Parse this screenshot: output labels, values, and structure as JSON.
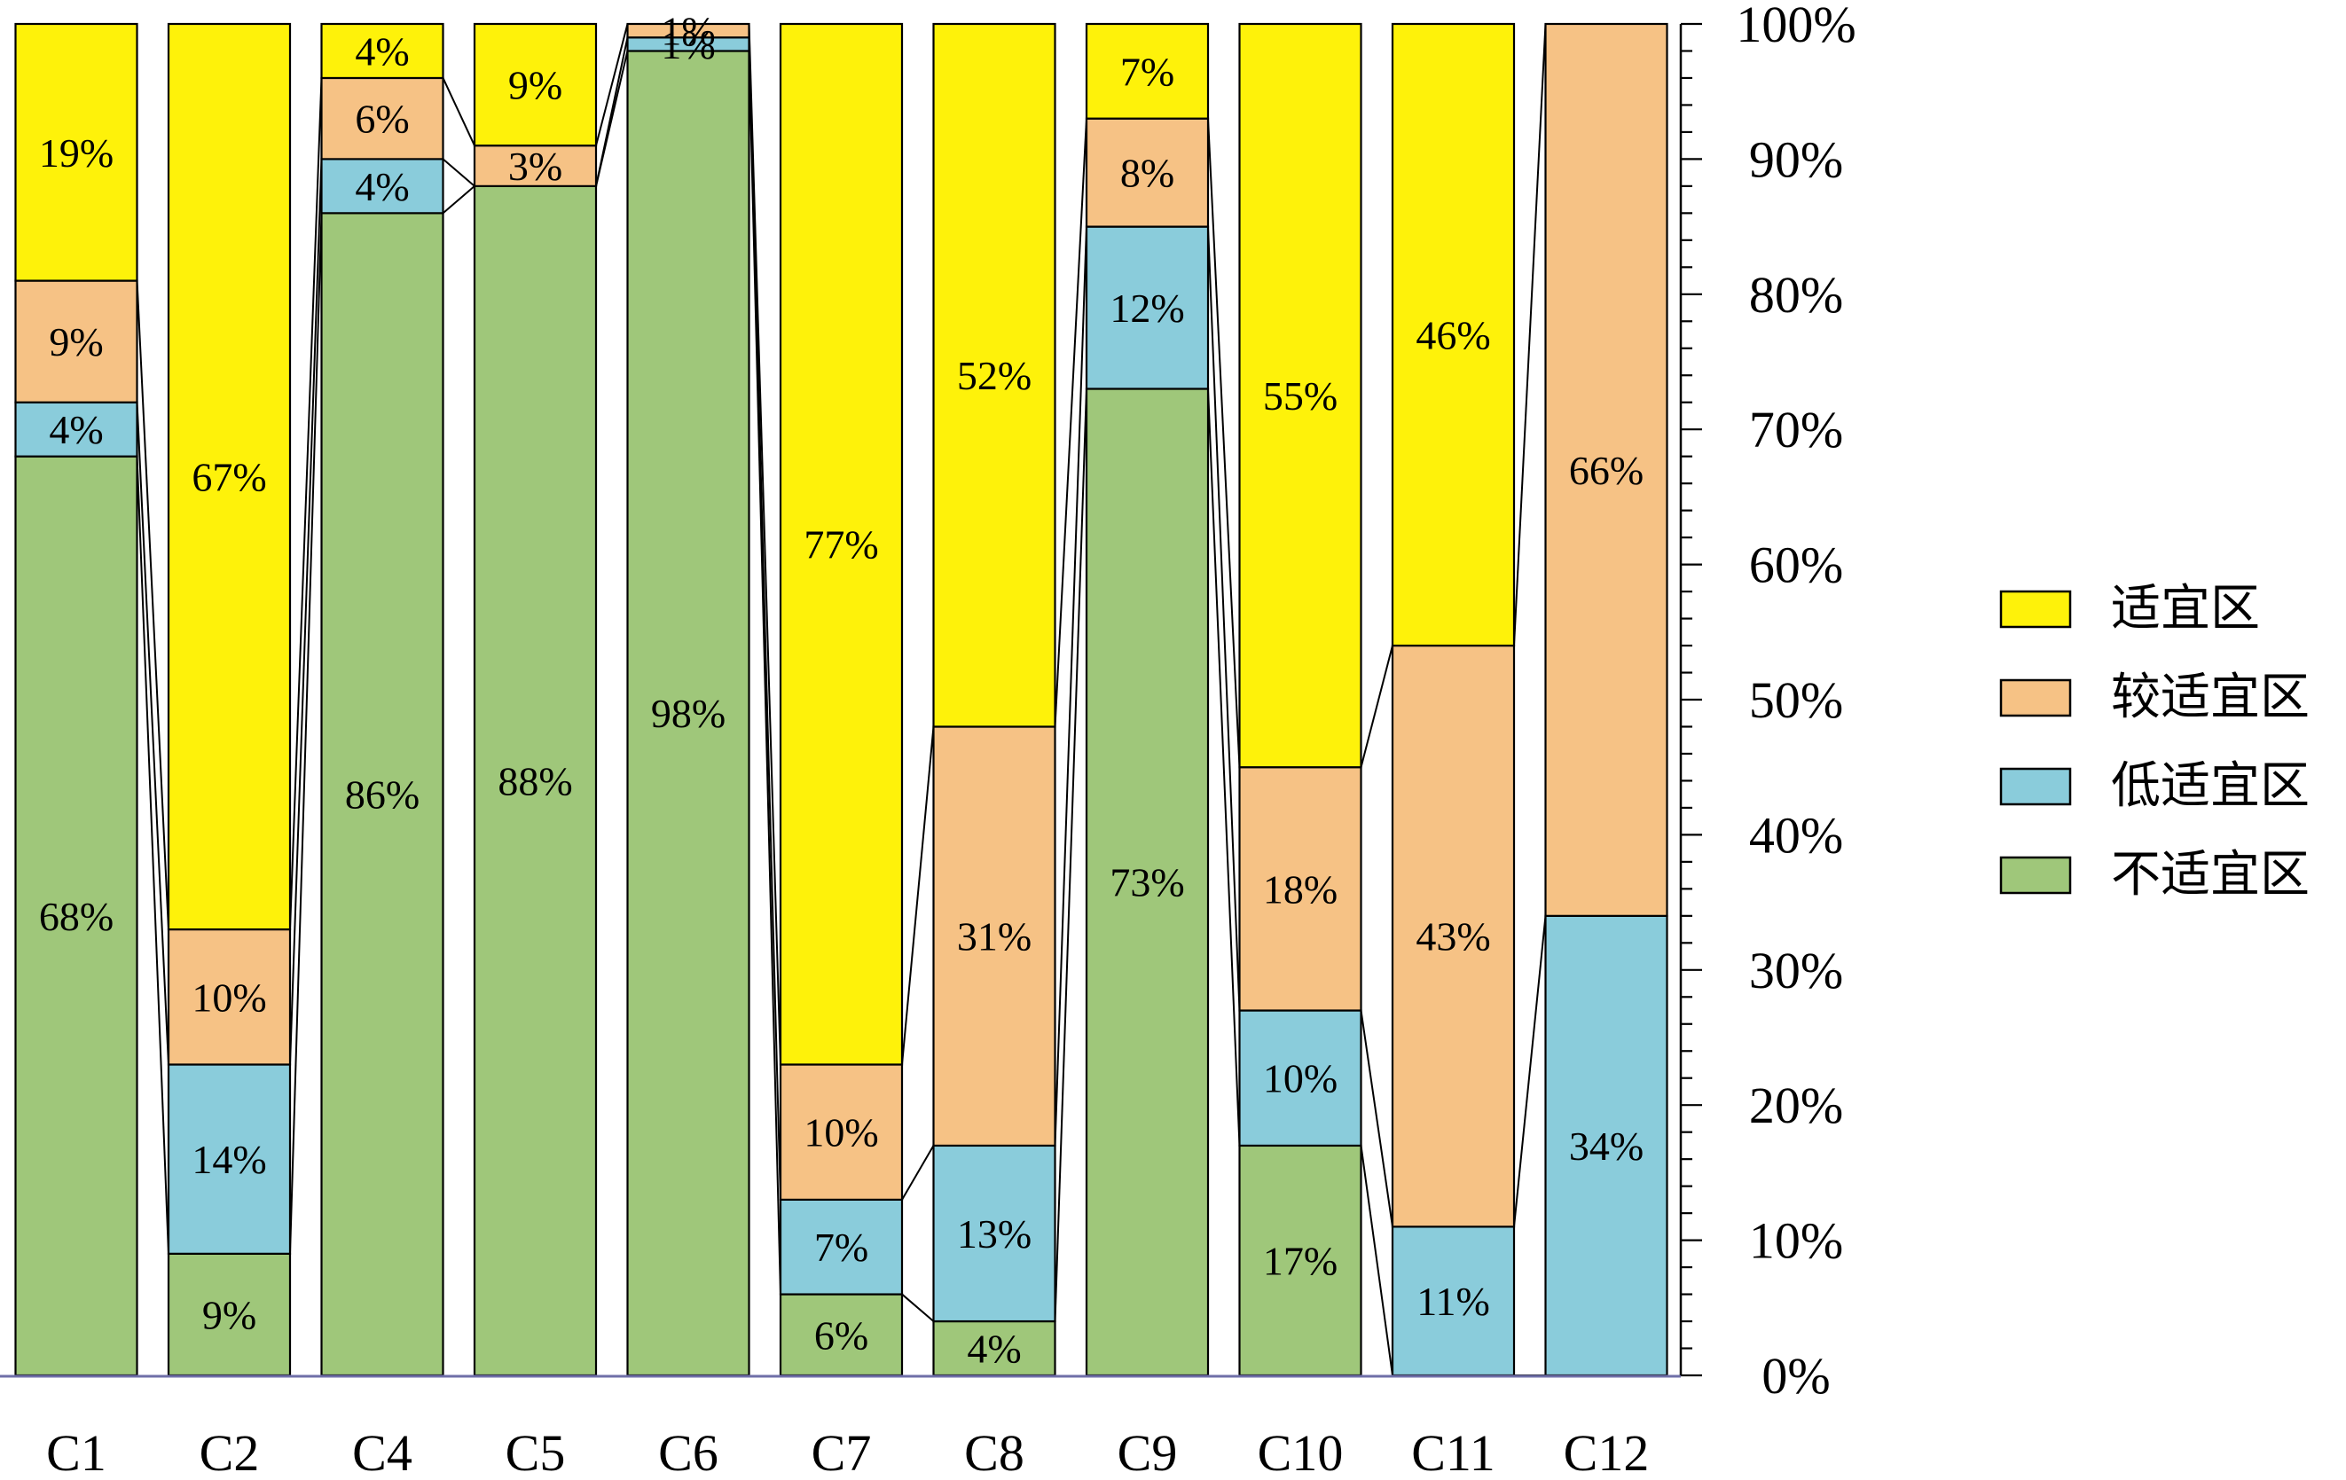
{
  "chart_data": {
    "type": "bar",
    "stacked": true,
    "percent": true,
    "categories": [
      "C1",
      "C2",
      "C4",
      "C5",
      "C6",
      "C7",
      "C8",
      "C9",
      "C10",
      "C11",
      "C12"
    ],
    "series": [
      {
        "name": "不适宜区",
        "color": "#9fc77a",
        "values": [
          68,
          9,
          86,
          88,
          98,
          6,
          4,
          73,
          17,
          0,
          0
        ]
      },
      {
        "name": "低适宜区",
        "color": "#8accdb",
        "values": [
          4,
          14,
          4,
          0,
          1,
          7,
          13,
          12,
          10,
          11,
          34
        ]
      },
      {
        "name": "较适宜区",
        "color": "#f6c285",
        "values": [
          9,
          10,
          6,
          3,
          1,
          10,
          31,
          8,
          18,
          43,
          66
        ]
      },
      {
        "name": "适宜区",
        "color": "#fef20a",
        "values": [
          19,
          67,
          4,
          9,
          0,
          77,
          52,
          7,
          55,
          46,
          0
        ]
      }
    ],
    "data_labels": [
      [
        "68%",
        "4%",
        "9%",
        "19%"
      ],
      [
        "9%",
        "14%",
        "10%",
        "67%"
      ],
      [
        "86%",
        "4%",
        "6%",
        "4%"
      ],
      [
        "88%",
        "",
        "3%",
        "9%"
      ],
      [
        "98%",
        "1%",
        "1%",
        ""
      ],
      [
        "6%",
        "7%",
        "10%",
        "77%"
      ],
      [
        "4%",
        "13%",
        "31%",
        "52%"
      ],
      [
        "73%",
        "12%",
        "8%",
        "7%"
      ],
      [
        "17%",
        "10%",
        "18%",
        "55%"
      ],
      [
        "",
        "11%",
        "43%",
        "46%"
      ],
      [
        "",
        "34%",
        "66%",
        ""
      ]
    ],
    "ylim": [
      0,
      100
    ],
    "y_ticks": [
      "0%",
      "10%",
      "20%",
      "30%",
      "40%",
      "50%",
      "60%",
      "70%",
      "80%",
      "90%",
      "100%"
    ],
    "y_axis_side": "right",
    "series_connector_lines": true,
    "legend": {
      "placement": "right",
      "entries": [
        "适宜区",
        "较适宜区",
        "低适宜区",
        "不适宜区"
      ]
    },
    "grid": false
  }
}
